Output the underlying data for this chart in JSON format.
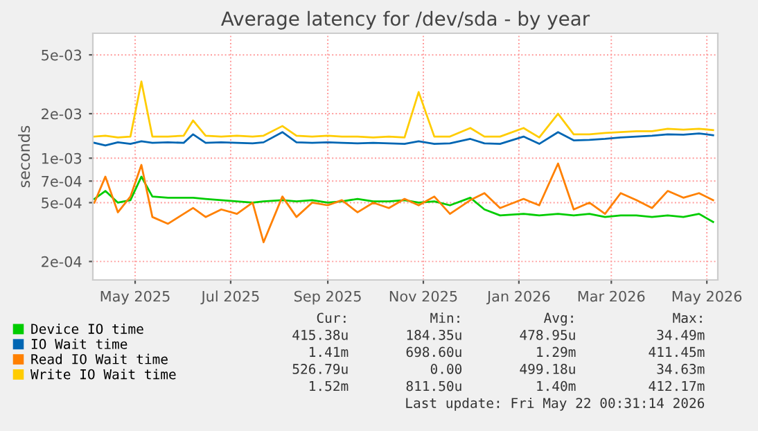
{
  "chart_data": {
    "type": "line",
    "title": "Average latency for /dev/sda - by year",
    "ylabel": "seconds",
    "log": "y",
    "grid": true,
    "legend": "bottom",
    "marker": "none",
    "line_style": "solid",
    "x": [
      "2025-04-05",
      "2025-04-12",
      "2025-04-20",
      "2025-04-28",
      "2025-05-05",
      "2025-05-12",
      "2025-05-22",
      "2025-06-01",
      "2025-06-07",
      "2025-06-15",
      "2025-06-25",
      "2025-07-05",
      "2025-07-15",
      "2025-07-22",
      "2025-08-03",
      "2025-08-12",
      "2025-08-22",
      "2025-09-01",
      "2025-09-10",
      "2025-09-20",
      "2025-09-30",
      "2025-10-10",
      "2025-10-20",
      "2025-10-29",
      "2025-11-08",
      "2025-11-18",
      "2025-12-01",
      "2025-12-10",
      "2025-12-20",
      "2026-01-04",
      "2026-01-14",
      "2026-01-26",
      "2026-02-05",
      "2026-02-15",
      "2026-02-25",
      "2026-03-07",
      "2026-03-17",
      "2026-03-27",
      "2026-04-06",
      "2026-04-16",
      "2026-04-26",
      "2026-05-05"
    ],
    "xlim": [
      "2025-04-04",
      "2026-05-08"
    ],
    "xticks": [
      {
        "value": "2025-05-01",
        "label": "May 2025"
      },
      {
        "value": "2025-07-01",
        "label": "Jul 2025"
      },
      {
        "value": "2025-09-01",
        "label": "Sep 2025"
      },
      {
        "value": "2025-11-01",
        "label": "Nov 2025"
      },
      {
        "value": "2026-01-01",
        "label": "Jan 2026"
      },
      {
        "value": "2026-03-01",
        "label": "Mar 2026"
      },
      {
        "value": "2026-05-01",
        "label": "May 2026"
      }
    ],
    "ylim": [
      0.00015,
      0.007
    ],
    "yticks": [
      {
        "value": 0.0002,
        "label": "2e-04"
      },
      {
        "value": 0.0005,
        "label": "5e-04"
      },
      {
        "value": 0.0007,
        "label": "7e-04"
      },
      {
        "value": 0.001,
        "label": "1e-03"
      },
      {
        "value": 0.002,
        "label": "2e-03"
      },
      {
        "value": 0.005,
        "label": "5e-03"
      }
    ],
    "series": [
      {
        "name": "Device IO time",
        "color": "#00cc00",
        "values": [
          0.00053,
          0.0006,
          0.0005,
          0.00052,
          0.00075,
          0.00055,
          0.00054,
          0.00054,
          0.00054,
          0.00053,
          0.00052,
          0.00051,
          0.0005,
          0.00051,
          0.00052,
          0.00051,
          0.00052,
          0.0005,
          0.00051,
          0.00053,
          0.00051,
          0.00051,
          0.00052,
          0.0005,
          0.00051,
          0.00048,
          0.00054,
          0.00045,
          0.00041,
          0.00042,
          0.00041,
          0.00042,
          0.00041,
          0.00042,
          0.0004,
          0.00041,
          0.00041,
          0.0004,
          0.00041,
          0.0004,
          0.00042,
          0.00037
        ]
      },
      {
        "name": "IO Wait time",
        "color": "#0066b3",
        "values": [
          0.00127,
          0.00122,
          0.00128,
          0.00125,
          0.0013,
          0.00127,
          0.00128,
          0.00127,
          0.00145,
          0.00127,
          0.00128,
          0.00127,
          0.00126,
          0.00128,
          0.0015,
          0.00128,
          0.00127,
          0.00128,
          0.00127,
          0.00126,
          0.00127,
          0.00126,
          0.00125,
          0.0013,
          0.00125,
          0.00126,
          0.00135,
          0.00126,
          0.00125,
          0.0014,
          0.00125,
          0.0015,
          0.00132,
          0.00133,
          0.00135,
          0.00138,
          0.0014,
          0.00142,
          0.00145,
          0.00144,
          0.00147,
          0.00143
        ]
      },
      {
        "name": "Read IO Wait time",
        "color": "#ff8000",
        "values": [
          0.0005,
          0.00075,
          0.00043,
          0.00055,
          0.0009,
          0.0004,
          0.00036,
          0.00042,
          0.00046,
          0.0004,
          0.00045,
          0.00042,
          0.0005,
          0.00027,
          0.00055,
          0.0004,
          0.0005,
          0.00048,
          0.00052,
          0.00043,
          0.0005,
          0.00046,
          0.00053,
          0.00048,
          0.00055,
          0.00042,
          0.00052,
          0.00058,
          0.00046,
          0.00053,
          0.00048,
          0.00092,
          0.00045,
          0.0005,
          0.00042,
          0.00058,
          0.00052,
          0.00046,
          0.0006,
          0.00054,
          0.00058,
          0.00052
        ]
      },
      {
        "name": "Write IO Wait time",
        "color": "#ffcc00",
        "values": [
          0.0014,
          0.00142,
          0.00138,
          0.0014,
          0.0033,
          0.0014,
          0.0014,
          0.00142,
          0.0018,
          0.00142,
          0.0014,
          0.00142,
          0.0014,
          0.00142,
          0.00165,
          0.00142,
          0.0014,
          0.00142,
          0.0014,
          0.0014,
          0.00138,
          0.0014,
          0.00138,
          0.0028,
          0.0014,
          0.0014,
          0.0016,
          0.0014,
          0.0014,
          0.0016,
          0.00138,
          0.002,
          0.00145,
          0.00145,
          0.00148,
          0.0015,
          0.00152,
          0.00152,
          0.00158,
          0.00156,
          0.00158,
          0.00155
        ]
      }
    ],
    "annotations": [
      "Cur:",
      "Min:",
      "Avg:",
      "Max:",
      "415.38u",
      "184.35u",
      "478.95u",
      "34.49m",
      "1.41m",
      "698.60u",
      "1.29m",
      "411.45m",
      "526.79u",
      "0.00",
      "499.18u",
      "34.63m",
      "1.52m",
      "811.50u",
      "1.40m",
      "412.17m",
      "Last update: Fri May 22 00:31:14 2026"
    ]
  }
}
